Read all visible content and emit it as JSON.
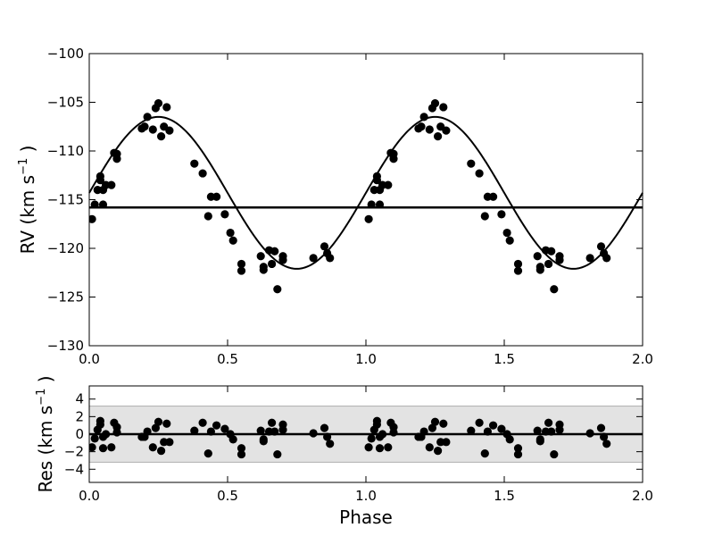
{
  "chart_data": [
    {
      "type": "scatter",
      "xlabel": "",
      "ylabel": "RV (km s$^{-1}$)",
      "ylabel_display": {
        "main": "RV (km s",
        "sup": "−1",
        "close": ")"
      },
      "xlim": [
        0.0,
        2.0
      ],
      "ylim": [
        -130,
        -100
      ],
      "xticks": [
        "0.0",
        "0.5",
        "1.0",
        "1.5",
        "2.0"
      ],
      "yticks": [
        "−130",
        "−125",
        "−120",
        "−115",
        "−110",
        "−105",
        "−100"
      ],
      "grid": false,
      "systemic_velocity": -115.8,
      "model": {
        "K": 7.8,
        "gamma": -114.3,
        "phase_offset": 0.0
      },
      "point_color": "#000000",
      "series": [
        {
          "x": [
            0.01,
            0.02,
            0.03,
            0.04,
            0.04,
            0.05,
            0.05,
            0.06,
            0.08,
            0.09,
            0.1,
            0.1,
            0.19,
            0.2,
            0.21,
            0.23,
            0.24,
            0.25,
            0.26,
            0.27,
            0.28,
            0.29,
            0.38,
            0.41,
            0.43,
            0.44,
            0.46,
            0.49,
            0.51,
            0.52,
            0.55,
            0.55,
            0.62,
            0.63,
            0.63,
            0.65,
            0.66,
            0.67,
            0.68,
            0.7,
            0.7,
            0.81,
            0.85,
            0.86,
            0.87,
            1.01,
            1.02,
            1.03,
            1.04,
            1.04,
            1.05,
            1.05,
            1.06,
            1.08,
            1.09,
            1.1,
            1.1,
            1.19,
            1.2,
            1.21,
            1.23,
            1.24,
            1.25,
            1.26,
            1.27,
            1.28,
            1.29,
            1.38,
            1.41,
            1.43,
            1.44,
            1.46,
            1.49,
            1.51,
            1.52,
            1.55,
            1.55,
            1.62,
            1.63,
            1.63,
            1.65,
            1.66,
            1.67,
            1.68,
            1.7,
            1.7,
            1.81,
            1.85,
            1.86,
            1.87
          ],
          "y": [
            -117,
            -115.5,
            -114,
            -113,
            -112.6,
            -115.5,
            -114,
            -113.5,
            -113.5,
            -110.2,
            -110.3,
            -110.8,
            -107.7,
            -107.5,
            -106.5,
            -107.8,
            -105.6,
            -105.1,
            -108.5,
            -107.5,
            -105.5,
            -107.9,
            -111.3,
            -112.3,
            -116.7,
            -114.7,
            -114.7,
            -116.5,
            -118.4,
            -119.2,
            -121.6,
            -122.3,
            -120.8,
            -121.9,
            -122.2,
            -120.2,
            -121.6,
            -120.3,
            -124.2,
            -120.8,
            -121.2,
            -121,
            -119.8,
            -120.5,
            -121,
            -117,
            -115.5,
            -114,
            -113,
            -112.6,
            -115.5,
            -114,
            -113.5,
            -113.5,
            -110.2,
            -110.3,
            -110.8,
            -107.7,
            -107.5,
            -106.5,
            -107.8,
            -105.6,
            -105.1,
            -108.5,
            -107.5,
            -105.5,
            -107.9,
            -111.3,
            -112.3,
            -116.7,
            -114.7,
            -114.7,
            -116.5,
            -118.4,
            -119.2,
            -121.6,
            -122.3,
            -120.8,
            -121.9,
            -122.2,
            -120.2,
            -121.6,
            -120.3,
            -124.2,
            -120.8,
            -121.2,
            -121,
            -119.8,
            -120.5,
            -121
          ]
        }
      ]
    },
    {
      "type": "scatter",
      "xlabel": "Phase",
      "ylabel": "Res (km s$^{-1}$)",
      "ylabel_display": {
        "main": "Res (km s",
        "sup": "−1",
        "close": ")"
      },
      "xlim": [
        0.0,
        2.0
      ],
      "ylim": [
        -5.5,
        5.5
      ],
      "xticks": [
        "0.0",
        "0.5",
        "1.0",
        "1.5",
        "2.0"
      ],
      "yticks": [
        "−4",
        "−2",
        "0",
        "2",
        "4"
      ],
      "ytick_values": [
        -4,
        -2,
        0,
        2,
        4
      ],
      "grid": false,
      "shaded_band": [
        -3.2,
        3.2
      ],
      "band_color": "#e3e3e3",
      "point_color": "#000000",
      "series": [
        {
          "x": [
            0.01,
            0.02,
            0.03,
            0.04,
            0.04,
            0.05,
            0.05,
            0.06,
            0.08,
            0.09,
            0.1,
            0.1,
            0.19,
            0.2,
            0.21,
            0.23,
            0.24,
            0.25,
            0.26,
            0.27,
            0.28,
            0.29,
            0.38,
            0.41,
            0.43,
            0.44,
            0.46,
            0.49,
            0.51,
            0.52,
            0.55,
            0.55,
            0.62,
            0.63,
            0.63,
            0.65,
            0.66,
            0.67,
            0.68,
            0.7,
            0.7,
            0.81,
            0.85,
            0.86,
            0.87,
            1.01,
            1.02,
            1.03,
            1.04,
            1.04,
            1.05,
            1.05,
            1.06,
            1.08,
            1.09,
            1.1,
            1.1,
            1.19,
            1.2,
            1.21,
            1.23,
            1.24,
            1.25,
            1.26,
            1.27,
            1.28,
            1.29,
            1.38,
            1.41,
            1.43,
            1.44,
            1.46,
            1.49,
            1.51,
            1.52,
            1.55,
            1.55,
            1.62,
            1.63,
            1.63,
            1.65,
            1.66,
            1.67,
            1.68,
            1.7,
            1.7,
            1.81,
            1.85,
            1.86,
            1.87
          ],
          "y": [
            -1.5,
            -0.5,
            0.5,
            1.1,
            1.5,
            -1.6,
            -0.3,
            0,
            -1.5,
            1.3,
            0.8,
            0.2,
            -0.3,
            -0.3,
            0.3,
            -1.5,
            0.7,
            1.4,
            -1.9,
            -0.9,
            1.2,
            -0.9,
            0.4,
            1.3,
            -2.2,
            0.3,
            1,
            0.6,
            0,
            -0.6,
            -1.6,
            -2.3,
            0.4,
            -0.6,
            -0.8,
            0.3,
            1.3,
            0.3,
            -2.3,
            1.1,
            0.5,
            0.1,
            0.7,
            -0.3,
            -1.1,
            -1.5,
            -0.5,
            0.5,
            1.1,
            1.5,
            -1.6,
            -0.3,
            0,
            -1.5,
            1.3,
            0.8,
            0.2,
            -0.3,
            -0.3,
            0.3,
            -1.5,
            0.7,
            1.4,
            -1.9,
            -0.9,
            1.2,
            -0.9,
            0.4,
            1.3,
            -2.2,
            0.3,
            1,
            0.6,
            0,
            -0.6,
            -1.6,
            -2.3,
            0.4,
            -0.6,
            -0.8,
            0.3,
            1.3,
            0.3,
            -2.3,
            1.1,
            0.5,
            0.1,
            0.7,
            -0.3,
            -1.1
          ]
        }
      ]
    }
  ]
}
